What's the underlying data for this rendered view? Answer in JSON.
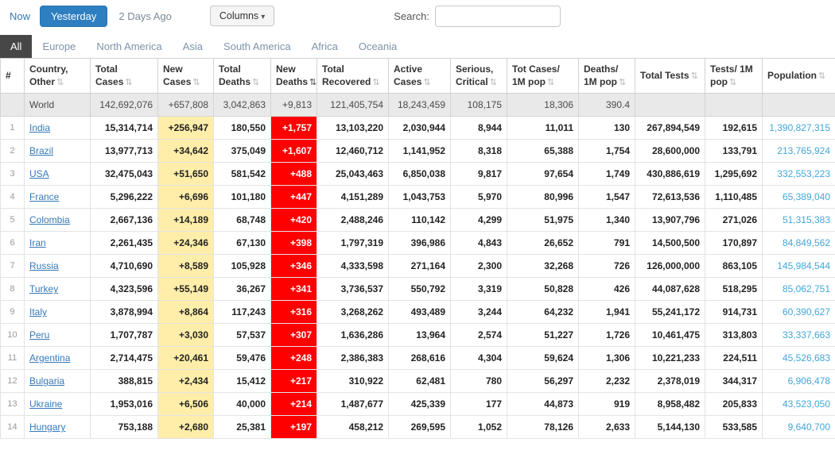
{
  "icons": {
    "sort": "⇅",
    "caret_down": "▾"
  },
  "toolbar": {
    "now_label": "Now",
    "yesterday_label": "Yesterday",
    "two_days_ago_label": "2 Days Ago",
    "columns_label": "Columns",
    "search_label": "Search:",
    "search_value": "",
    "accent_color": "#2d7fc1"
  },
  "tabs": [
    {
      "label": "All",
      "active": true
    },
    {
      "label": "Europe",
      "active": false
    },
    {
      "label": "North America",
      "active": false
    },
    {
      "label": "Asia",
      "active": false
    },
    {
      "label": "South America",
      "active": false
    },
    {
      "label": "Africa",
      "active": false
    },
    {
      "label": "Oceania",
      "active": false
    }
  ],
  "table": {
    "sorted_column": "New Deaths",
    "highlight_colors": {
      "new_cases_bg": "#FFEEAA",
      "new_deaths_bg": "#FF0000"
    },
    "headers": [
      {
        "label": "#"
      },
      {
        "label": "Country, Other"
      },
      {
        "label": "Total Cases"
      },
      {
        "label": "New Cases"
      },
      {
        "label": "Total Deaths"
      },
      {
        "label": "New Deaths"
      },
      {
        "label": "Total Recovered"
      },
      {
        "label": "Active Cases"
      },
      {
        "label": "Serious, Critical"
      },
      {
        "label": "Tot Cases/ 1M pop"
      },
      {
        "label": "Deaths/ 1M pop"
      },
      {
        "label": "Total Tests"
      },
      {
        "label": "Tests/ 1M pop"
      },
      {
        "label": "Population"
      }
    ],
    "world_row": {
      "rank": "",
      "country": "World",
      "total_cases": "142,692,076",
      "new_cases": "+657,808",
      "total_deaths": "3,042,863",
      "new_deaths": "+9,813",
      "total_recovered": "121,405,754",
      "active_cases": "18,243,459",
      "serious_critical": "108,175",
      "tot_cases_1m": "18,306",
      "deaths_1m": "390.4",
      "total_tests": "",
      "tests_1m": "",
      "population": ""
    },
    "rows": [
      {
        "rank": "1",
        "country": "India",
        "total_cases": "15,314,714",
        "new_cases": "+256,947",
        "total_deaths": "180,550",
        "new_deaths": "+1,757",
        "total_recovered": "13,103,220",
        "active_cases": "2,030,944",
        "serious_critical": "8,944",
        "tot_cases_1m": "11,011",
        "deaths_1m": "130",
        "total_tests": "267,894,549",
        "tests_1m": "192,615",
        "population": "1,390,827,315"
      },
      {
        "rank": "2",
        "country": "Brazil",
        "total_cases": "13,977,713",
        "new_cases": "+34,642",
        "total_deaths": "375,049",
        "new_deaths": "+1,607",
        "total_recovered": "12,460,712",
        "active_cases": "1,141,952",
        "serious_critical": "8,318",
        "tot_cases_1m": "65,388",
        "deaths_1m": "1,754",
        "total_tests": "28,600,000",
        "tests_1m": "133,791",
        "population": "213,765,924"
      },
      {
        "rank": "3",
        "country": "USA",
        "total_cases": "32,475,043",
        "new_cases": "+51,650",
        "total_deaths": "581,542",
        "new_deaths": "+488",
        "total_recovered": "25,043,463",
        "active_cases": "6,850,038",
        "serious_critical": "9,817",
        "tot_cases_1m": "97,654",
        "deaths_1m": "1,749",
        "total_tests": "430,886,619",
        "tests_1m": "1,295,692",
        "population": "332,553,223"
      },
      {
        "rank": "4",
        "country": "France",
        "total_cases": "5,296,222",
        "new_cases": "+6,696",
        "total_deaths": "101,180",
        "new_deaths": "+447",
        "total_recovered": "4,151,289",
        "active_cases": "1,043,753",
        "serious_critical": "5,970",
        "tot_cases_1m": "80,996",
        "deaths_1m": "1,547",
        "total_tests": "72,613,536",
        "tests_1m": "1,110,485",
        "population": "65,389,040"
      },
      {
        "rank": "5",
        "country": "Colombia",
        "total_cases": "2,667,136",
        "new_cases": "+14,189",
        "total_deaths": "68,748",
        "new_deaths": "+420",
        "total_recovered": "2,488,246",
        "active_cases": "110,142",
        "serious_critical": "4,299",
        "tot_cases_1m": "51,975",
        "deaths_1m": "1,340",
        "total_tests": "13,907,796",
        "tests_1m": "271,026",
        "population": "51,315,383"
      },
      {
        "rank": "6",
        "country": "Iran",
        "total_cases": "2,261,435",
        "new_cases": "+24,346",
        "total_deaths": "67,130",
        "new_deaths": "+398",
        "total_recovered": "1,797,319",
        "active_cases": "396,986",
        "serious_critical": "4,843",
        "tot_cases_1m": "26,652",
        "deaths_1m": "791",
        "total_tests": "14,500,500",
        "tests_1m": "170,897",
        "population": "84,849,562"
      },
      {
        "rank": "7",
        "country": "Russia",
        "total_cases": "4,710,690",
        "new_cases": "+8,589",
        "total_deaths": "105,928",
        "new_deaths": "+346",
        "total_recovered": "4,333,598",
        "active_cases": "271,164",
        "serious_critical": "2,300",
        "tot_cases_1m": "32,268",
        "deaths_1m": "726",
        "total_tests": "126,000,000",
        "tests_1m": "863,105",
        "population": "145,984,544"
      },
      {
        "rank": "8",
        "country": "Turkey",
        "total_cases": "4,323,596",
        "new_cases": "+55,149",
        "total_deaths": "36,267",
        "new_deaths": "+341",
        "total_recovered": "3,736,537",
        "active_cases": "550,792",
        "serious_critical": "3,319",
        "tot_cases_1m": "50,828",
        "deaths_1m": "426",
        "total_tests": "44,087,628",
        "tests_1m": "518,295",
        "population": "85,062,751"
      },
      {
        "rank": "9",
        "country": "Italy",
        "total_cases": "3,878,994",
        "new_cases": "+8,864",
        "total_deaths": "117,243",
        "new_deaths": "+316",
        "total_recovered": "3,268,262",
        "active_cases": "493,489",
        "serious_critical": "3,244",
        "tot_cases_1m": "64,232",
        "deaths_1m": "1,941",
        "total_tests": "55,241,172",
        "tests_1m": "914,731",
        "population": "60,390,627"
      },
      {
        "rank": "10",
        "country": "Peru",
        "total_cases": "1,707,787",
        "new_cases": "+3,030",
        "total_deaths": "57,537",
        "new_deaths": "+307",
        "total_recovered": "1,636,286",
        "active_cases": "13,964",
        "serious_critical": "2,574",
        "tot_cases_1m": "51,227",
        "deaths_1m": "1,726",
        "total_tests": "10,461,475",
        "tests_1m": "313,803",
        "population": "33,337,663"
      },
      {
        "rank": "11",
        "country": "Argentina",
        "total_cases": "2,714,475",
        "new_cases": "+20,461",
        "total_deaths": "59,476",
        "new_deaths": "+248",
        "total_recovered": "2,386,383",
        "active_cases": "268,616",
        "serious_critical": "4,304",
        "tot_cases_1m": "59,624",
        "deaths_1m": "1,306",
        "total_tests": "10,221,233",
        "tests_1m": "224,511",
        "population": "45,526,683"
      },
      {
        "rank": "12",
        "country": "Bulgaria",
        "total_cases": "388,815",
        "new_cases": "+2,434",
        "total_deaths": "15,412",
        "new_deaths": "+217",
        "total_recovered": "310,922",
        "active_cases": "62,481",
        "serious_critical": "780",
        "tot_cases_1m": "56,297",
        "deaths_1m": "2,232",
        "total_tests": "2,378,019",
        "tests_1m": "344,317",
        "population": "6,906,478"
      },
      {
        "rank": "13",
        "country": "Ukraine",
        "total_cases": "1,953,016",
        "new_cases": "+6,506",
        "total_deaths": "40,000",
        "new_deaths": "+214",
        "total_recovered": "1,487,677",
        "active_cases": "425,339",
        "serious_critical": "177",
        "tot_cases_1m": "44,873",
        "deaths_1m": "919",
        "total_tests": "8,958,482",
        "tests_1m": "205,833",
        "population": "43,523,050"
      },
      {
        "rank": "14",
        "country": "Hungary",
        "total_cases": "753,188",
        "new_cases": "+2,680",
        "total_deaths": "25,381",
        "new_deaths": "+197",
        "total_recovered": "458,212",
        "active_cases": "269,595",
        "serious_critical": "1,052",
        "tot_cases_1m": "78,126",
        "deaths_1m": "2,633",
        "total_tests": "5,144,130",
        "tests_1m": "533,585",
        "population": "9,640,700"
      }
    ]
  }
}
